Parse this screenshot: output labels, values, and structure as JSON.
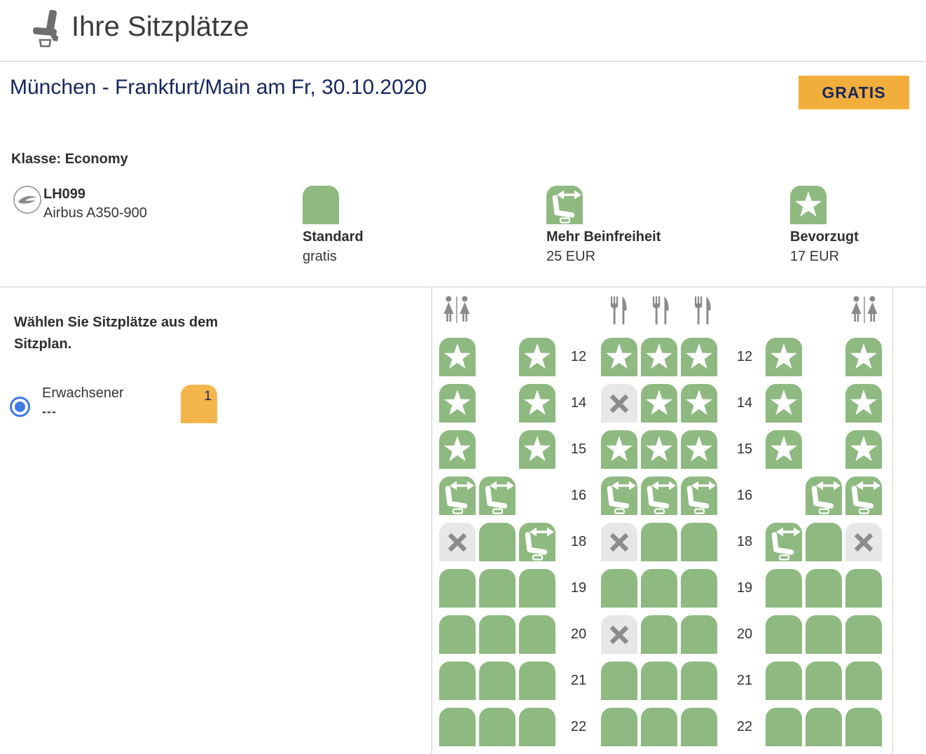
{
  "colors": {
    "green": "#8EB980",
    "occupied-bg": "#E7E7E7",
    "occupied-x": "#8C8C8C",
    "orange": "#F2AE3B",
    "seat-orange": "#F4B54C",
    "navy": "#15265E",
    "icon-gray": "#8A8A8A",
    "divider": "#CCCCCC",
    "radio-blue": "#3D79E7"
  },
  "header": {
    "title": "Ihre Sitzplätze",
    "icon": "seat-icon"
  },
  "route": {
    "title": "München - Frankfurt/Main am Fr, 30.10.2020",
    "badge_label": "GRATIS"
  },
  "cabin_class": "Klasse: Economy",
  "flight": {
    "number": "LH099",
    "aircraft": "Airbus A350-900",
    "icon": "lufthansa-logo"
  },
  "legend": {
    "items": [
      {
        "seat_type": "standard",
        "label": "Standard",
        "price": "gratis"
      },
      {
        "seat_type": "legroom",
        "label": "Mehr Beinfreiheit",
        "price": "25 EUR"
      },
      {
        "seat_type": "star",
        "label": "Bevorzugt",
        "price": "17 EUR"
      }
    ]
  },
  "sidebar": {
    "instruction": "Wählen Sie Sitzplätze aus dem Sitzplan.",
    "passenger": {
      "label": "Erwachsener",
      "seat_value": "---",
      "count": "1",
      "selected": true
    }
  },
  "seatmap": {
    "facility_icons": {
      "left": "toilet-icon",
      "center": [
        "galley-icon",
        "galley-icon",
        "galley-icon"
      ],
      "right": "toilet-icon"
    },
    "seat_types_legend": {
      "standard": "available standard",
      "star": "available preferred",
      "legroom": "available extra legroom",
      "occupied": "not available"
    },
    "rows": [
      {
        "label": "12",
        "left": [
          "star",
          null,
          "star"
        ],
        "middle": [
          "star",
          "star",
          "star"
        ],
        "right": [
          "star",
          null,
          "star"
        ]
      },
      {
        "label": "14",
        "left": [
          "star",
          null,
          "star"
        ],
        "middle": [
          "occupied",
          "star",
          "star"
        ],
        "right": [
          "star",
          null,
          "star"
        ]
      },
      {
        "label": "15",
        "left": [
          "star",
          null,
          "star"
        ],
        "middle": [
          "star",
          "star",
          "star"
        ],
        "right": [
          "star",
          null,
          "star"
        ]
      },
      {
        "label": "16",
        "left": [
          "legroom",
          "legroom",
          null
        ],
        "middle": [
          "legroom",
          "legroom",
          "legroom"
        ],
        "right": [
          null,
          "legroom",
          "legroom"
        ]
      },
      {
        "label": "18",
        "left": [
          "occupied",
          "standard",
          "legroom"
        ],
        "middle": [
          "occupied",
          "standard",
          "standard"
        ],
        "right": [
          "legroom",
          "standard",
          "occupied"
        ]
      },
      {
        "label": "19",
        "left": [
          "standard",
          "standard",
          "standard"
        ],
        "middle": [
          "standard",
          "standard",
          "standard"
        ],
        "right": [
          "standard",
          "standard",
          "standard"
        ]
      },
      {
        "label": "20",
        "left": [
          "standard",
          "standard",
          "standard"
        ],
        "middle": [
          "occupied",
          "standard",
          "standard"
        ],
        "right": [
          "standard",
          "standard",
          "standard"
        ]
      },
      {
        "label": "21",
        "left": [
          "standard",
          "standard",
          "standard"
        ],
        "middle": [
          "standard",
          "standard",
          "standard"
        ],
        "right": [
          "standard",
          "standard",
          "standard"
        ]
      },
      {
        "label": "22",
        "left": [
          "standard",
          "standard",
          "standard"
        ],
        "middle": [
          "standard",
          "standard",
          "standard"
        ],
        "right": [
          "standard",
          "standard",
          "standard"
        ]
      }
    ]
  }
}
